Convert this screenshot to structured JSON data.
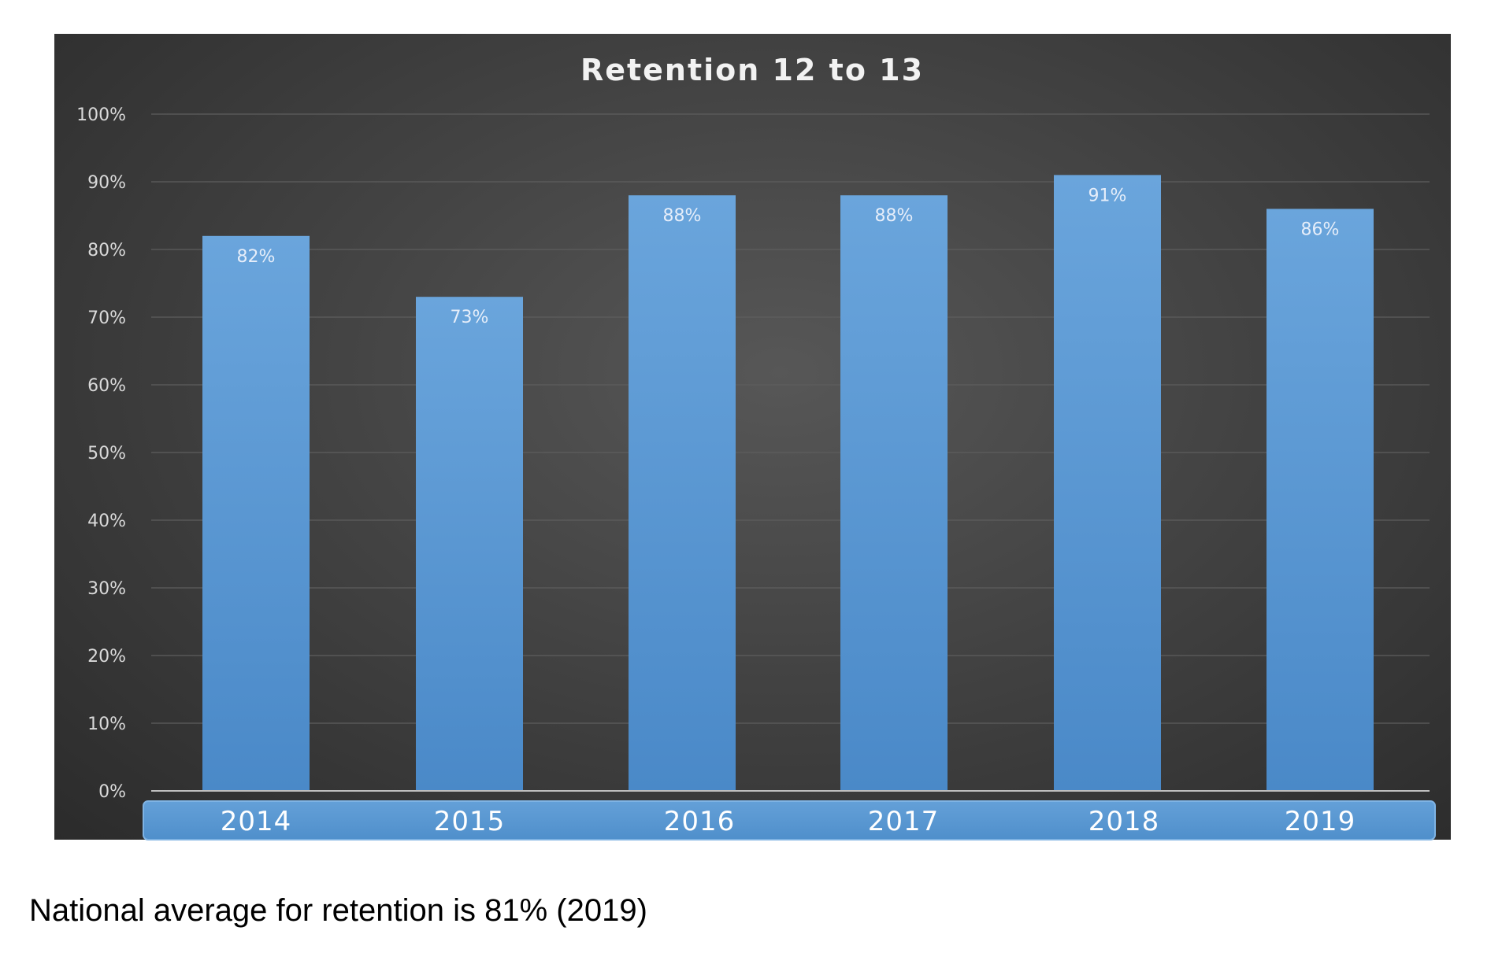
{
  "chart_data": {
    "type": "bar",
    "title": "Retention 12 to 13",
    "categories": [
      "2014",
      "2015",
      "2016",
      "2017",
      "2018",
      "2019"
    ],
    "values": [
      82,
      73,
      88,
      88,
      91,
      86
    ],
    "data_labels": [
      "82%",
      "73%",
      "88%",
      "88%",
      "91%",
      "86%"
    ],
    "ylim": [
      0,
      100
    ],
    "y_ticks": [
      "0%",
      "10%",
      "20%",
      "30%",
      "40%",
      "50%",
      "60%",
      "70%",
      "80%",
      "90%",
      "100%"
    ],
    "xlabel": "",
    "ylabel": "",
    "grid": true,
    "legend": "none",
    "colors": {
      "bar": "#5b9bd5",
      "background": "#404040",
      "category_band": "#5b9bd5"
    }
  },
  "caption": "National average for retention is 81% (2019)"
}
